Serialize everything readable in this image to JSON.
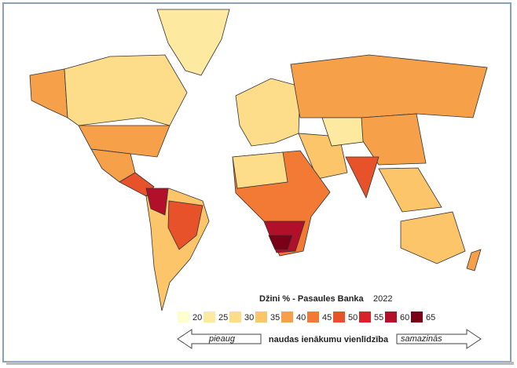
{
  "title": "Džini % - Pasaules Banka",
  "year": 2022,
  "legend": {
    "items": [
      {
        "value": 20,
        "color": "#ffffcc"
      },
      {
        "value": 25,
        "color": "#fee9a0"
      },
      {
        "value": 30,
        "color": "#fedd8a"
      },
      {
        "value": 35,
        "color": "#fdc569"
      },
      {
        "value": 40,
        "color": "#f7a04a"
      },
      {
        "value": 45,
        "color": "#f27a35"
      },
      {
        "value": 50,
        "color": "#e8522b"
      },
      {
        "value": 55,
        "color": "#d8232a"
      },
      {
        "value": 60,
        "color": "#b2102a"
      },
      {
        "value": 65,
        "color": "#7a0018"
      }
    ]
  },
  "scale_caption": "naudas ienākumu vienlīdzība",
  "left_arrow": "pieaug",
  "right_arrow": "samazinās"
}
